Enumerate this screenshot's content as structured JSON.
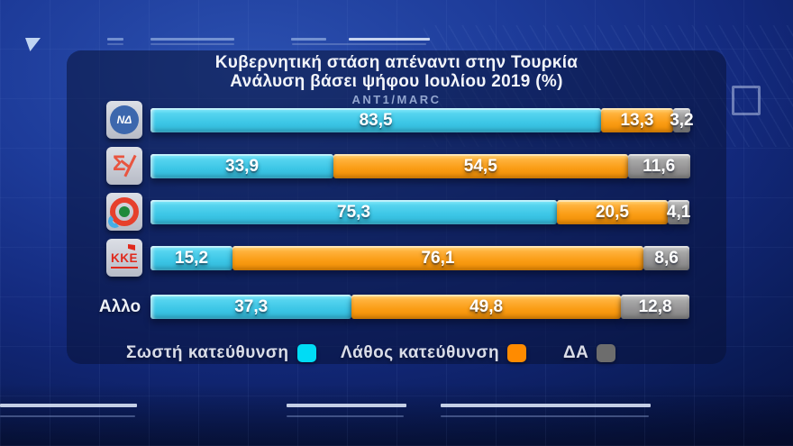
{
  "header": {
    "title": "Κυβερνητική στάση απέναντι στην Τουρκία",
    "subtitle": "Ανάλυση βάσει ψήφου Ιουλίου 2019 (%)",
    "source": "ANT1/MARC"
  },
  "chart_data": {
    "type": "bar",
    "orientation": "horizontal",
    "stacked": true,
    "unit": "%",
    "decimal_separator": ",",
    "xlim": [
      0,
      100
    ],
    "legend_position": "bottom",
    "categories": [
      "ΝΔ",
      "ΣΥΡΙΖΑ",
      "ΚΙΝΑΛ/ΠΑΣΟΚ",
      "ΚΚΕ",
      "Αλλο"
    ],
    "rows": [
      {
        "party": "ΝΔ",
        "logo": "nd",
        "logo_text": "ΝΔ",
        "values": [
          83.5,
          13.3,
          3.2
        ]
      },
      {
        "party": "ΣΥΡΙΖΑ",
        "logo": "syriza",
        "logo_text": "Σ",
        "values": [
          33.9,
          54.5,
          11.6
        ]
      },
      {
        "party": "ΚΙΝΑΛ/ΠΑΣΟΚ",
        "logo": "kinal",
        "logo_text": "",
        "values": [
          75.3,
          20.5,
          4.1
        ]
      },
      {
        "party": "ΚΚΕ",
        "logo": "kke",
        "logo_text": "ΚΚΕ",
        "values": [
          15.2,
          76.1,
          8.6
        ]
      },
      {
        "party": "Αλλο",
        "logo": "text",
        "logo_text": "Αλλο",
        "values": [
          37.3,
          49.8,
          12.8
        ]
      }
    ],
    "series": [
      {
        "name": "Σωστή κατεύθυνση",
        "color": "#2fc3e4",
        "values": [
          83.5,
          33.9,
          75.3,
          15.2,
          37.3
        ]
      },
      {
        "name": "Λάθος κατεύθυνση",
        "color": "#fa9c14",
        "values": [
          13.3,
          54.5,
          20.5,
          76.1,
          49.8
        ]
      },
      {
        "name": "ΔΑ",
        "color": "#8f8f91",
        "values": [
          3.2,
          11.6,
          4.1,
          8.6,
          12.8
        ]
      }
    ]
  },
  "legend": {
    "items": [
      {
        "label": "Σωστή κατεύθυνση",
        "color": "#00dcf5"
      },
      {
        "label": "Λάθος κατεύθυνση",
        "color": "#ff8b00"
      },
      {
        "label": "ΔΑ",
        "color": "#6d6d6d"
      }
    ]
  }
}
